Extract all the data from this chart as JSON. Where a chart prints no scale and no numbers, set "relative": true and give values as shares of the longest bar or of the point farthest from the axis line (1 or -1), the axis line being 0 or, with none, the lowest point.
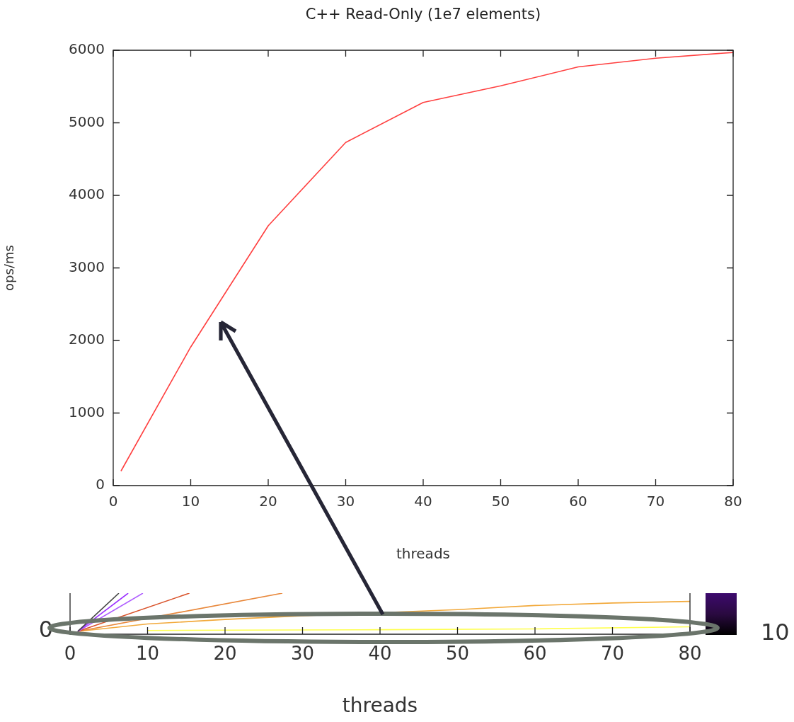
{
  "chart_data": [
    {
      "type": "line",
      "title": "C++ Read-Only (1e7 elements)",
      "xlabel": "threads",
      "ylabel": "ops/ms",
      "xlim": [
        0,
        80
      ],
      "xticks": [
        0,
        10,
        20,
        30,
        40,
        50,
        60,
        70,
        80
      ],
      "ylim": [
        0,
        6000
      ],
      "yticks": [
        0,
        1000,
        2000,
        3000,
        4000,
        5000,
        6000
      ],
      "grid": false,
      "legend": false,
      "x": [
        1,
        10,
        20,
        30,
        40,
        50,
        60,
        70,
        80
      ],
      "series": [
        {
          "color": "#ff4040",
          "values": [
            200,
            1910,
            3580,
            4730,
            5280,
            5510,
            5770,
            5890,
            5970
          ]
        }
      ]
    },
    {
      "type": "line",
      "xlabel": "threads",
      "relative": true,
      "xlim": [
        0,
        80
      ],
      "xticks": [
        0,
        10,
        20,
        30,
        40,
        50,
        60,
        70,
        80
      ],
      "grid": false,
      "legend": false,
      "annotations": [
        "0",
        "10"
      ],
      "series": [
        {
          "color": "#444444",
          "x": [
            1,
            6.3
          ],
          "values": [
            0.07,
            1
          ]
        },
        {
          "color": "#9b30ff",
          "x": [
            1,
            7.5
          ],
          "values": [
            0.07,
            1
          ]
        },
        {
          "color": "#b060ff",
          "x": [
            1,
            9.4
          ],
          "values": [
            0.07,
            1
          ]
        },
        {
          "color": "#d9532b",
          "x": [
            1,
            15.4
          ],
          "values": [
            0.07,
            1
          ]
        },
        {
          "color": "#e8873a",
          "x": [
            1,
            27.4
          ],
          "values": [
            0.07,
            1
          ]
        },
        {
          "color": "#f2a93b",
          "x": [
            1,
            10,
            20,
            30,
            40,
            50,
            60,
            70,
            80
          ],
          "values": [
            0.07,
            0.25,
            0.36,
            0.45,
            null,
            0.6,
            0.7,
            0.76,
            0.8
          ]
        },
        {
          "color": "#ffff50",
          "x": [
            10,
            20,
            40,
            60,
            80
          ],
          "values": [
            0.09,
            0.1,
            0.11,
            0.13,
            0.18
          ]
        }
      ]
    }
  ]
}
